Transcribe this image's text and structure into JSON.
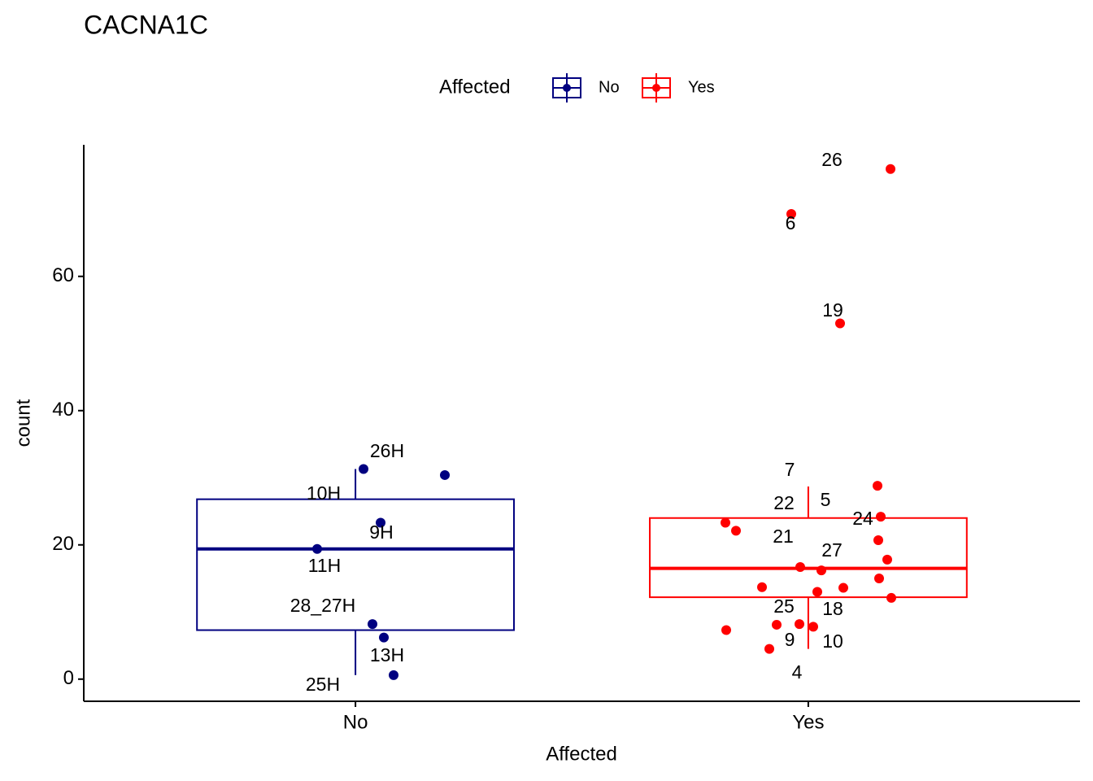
{
  "chart_data": {
    "type": "boxplot",
    "title": "CACNA1C",
    "x_label": "Affected",
    "y_label": "count",
    "legend_title": "Affected",
    "categories": [
      "No",
      "Yes"
    ],
    "ylim": [
      -3.3,
      79.6
    ],
    "yticks": [
      0,
      20,
      40,
      60
    ],
    "series": [
      {
        "name": "No",
        "color": "#000080",
        "box": {
          "whisker_low": 0.6,
          "q1": 7.3,
          "median": 19.4,
          "q3": 26.8,
          "whisker_high": 31.3
        },
        "points": [
          {
            "label": "26H",
            "value": 31.3
          },
          {
            "label": "10H",
            "value": 23.3
          },
          {
            "label": "9H",
            "value": 19.4
          },
          {
            "label": "11H",
            "value": 30.4
          },
          {
            "label": "28_27H",
            "value": 8.2
          },
          {
            "label": "13H",
            "value": 6.2
          },
          {
            "label": "25H",
            "value": 0.6
          }
        ]
      },
      {
        "name": "Yes",
        "color": "#ff0000",
        "box": {
          "whisker_low": 4.5,
          "q1": 12.2,
          "median": 16.5,
          "q3": 24.0,
          "whisker_high": 28.7
        },
        "points": [
          {
            "label": "26",
            "value": 76.0
          },
          {
            "label": "6",
            "value": 69.3
          },
          {
            "label": "19",
            "value": 53.0
          },
          {
            "label": "7",
            "value": 28.8
          },
          {
            "label": "22",
            "value": 23.3
          },
          {
            "label": "21",
            "value": 22.1
          },
          {
            "label": "24",
            "value": 24.2
          },
          {
            "label": "5",
            "value": 20.7
          },
          {
            "label": "27",
            "value": 16.2
          },
          {
            "label": "25",
            "value": 8.1
          },
          {
            "label": "18",
            "value": 7.8
          },
          {
            "label": "10",
            "value": 8.2
          },
          {
            "label": "9",
            "value": 4.5
          },
          {
            "label": "4",
            "value": 7.3
          },
          {
            "label": null,
            "value": 17.8
          },
          {
            "label": null,
            "value": 15.0
          },
          {
            "label": null,
            "value": 12.1
          },
          {
            "label": null,
            "value": 16.7
          },
          {
            "label": null,
            "value": 13.7
          },
          {
            "label": null,
            "value": 13.0
          },
          {
            "label": null,
            "value": 13.6
          }
        ]
      }
    ]
  }
}
